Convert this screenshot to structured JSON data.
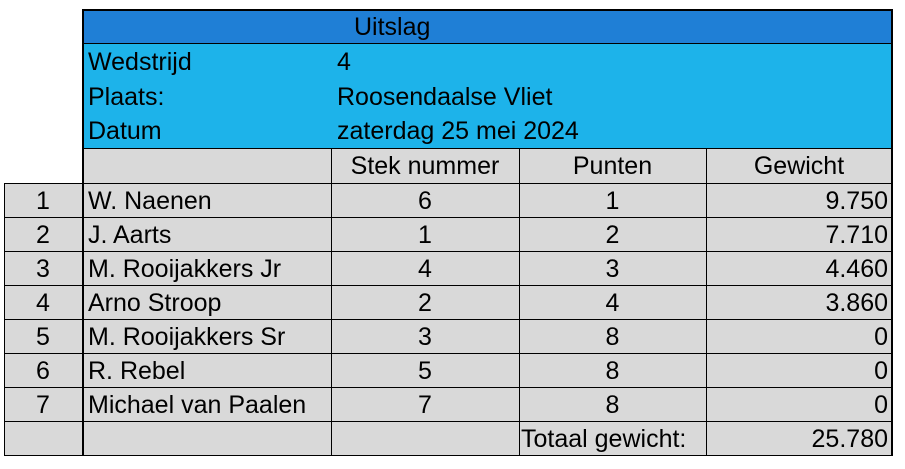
{
  "header": {
    "title": "Uitslag",
    "wedstrijd_label": "Wedstrijd",
    "wedstrijd_value": "4",
    "plaats_label": "Plaats:",
    "plaats_value": "Roosendaalse Vliet",
    "datum_label": "Datum",
    "datum_value": "zaterdag 25 mei 2024"
  },
  "columns": {
    "stek": "Stek nummer",
    "punten": "Punten",
    "gewicht": "Gewicht"
  },
  "rows": [
    {
      "rank": "1",
      "name": "W. Naenen",
      "stek": "6",
      "punten": "1",
      "gewicht": "9.750"
    },
    {
      "rank": "2",
      "name": "J. Aarts",
      "stek": "1",
      "punten": "2",
      "gewicht": "7.710"
    },
    {
      "rank": "3",
      "name": "M. Rooijakkers Jr",
      "stek": "4",
      "punten": "3",
      "gewicht": "4.460"
    },
    {
      "rank": "4",
      "name": "Arno Stroop",
      "stek": "2",
      "punten": "4",
      "gewicht": "3.860"
    },
    {
      "rank": "5",
      "name": "M. Rooijakkers Sr",
      "stek": "3",
      "punten": "8",
      "gewicht": "0"
    },
    {
      "rank": "6",
      "name": "R. Rebel",
      "stek": "5",
      "punten": "8",
      "gewicht": "0"
    },
    {
      "rank": "7",
      "name": "Michael van Paalen",
      "stek": "7",
      "punten": "8",
      "gewicht": "0"
    }
  ],
  "footer": {
    "total_label": "Totaal gewicht:",
    "total_value": "25.780"
  },
  "colors": {
    "title_bar": "#1f7fd6",
    "info_block": "#1db3ea",
    "table_body": "#d9d9d9"
  }
}
